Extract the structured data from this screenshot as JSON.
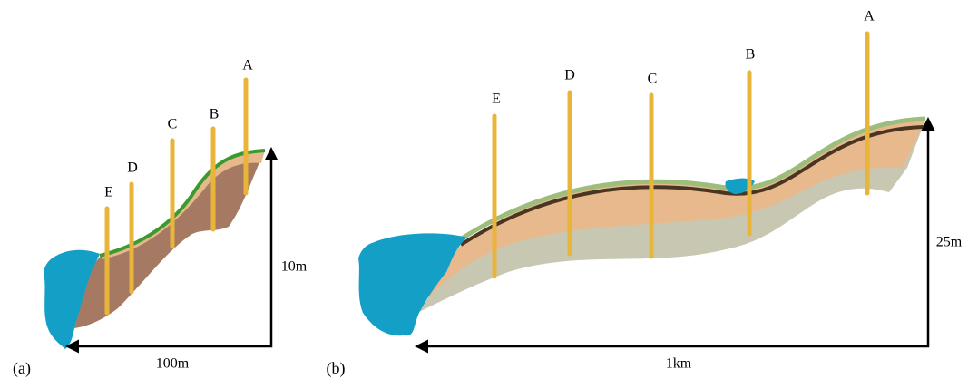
{
  "panels": [
    {
      "label": "(a)",
      "poles": [
        "A",
        "B",
        "C",
        "D",
        "E"
      ],
      "height_label": "10m",
      "width_label": "100m"
    },
    {
      "label": "(b)",
      "poles": [
        "A",
        "B",
        "C",
        "D",
        "E"
      ],
      "height_label": "25m",
      "width_label": "1km"
    }
  ]
}
